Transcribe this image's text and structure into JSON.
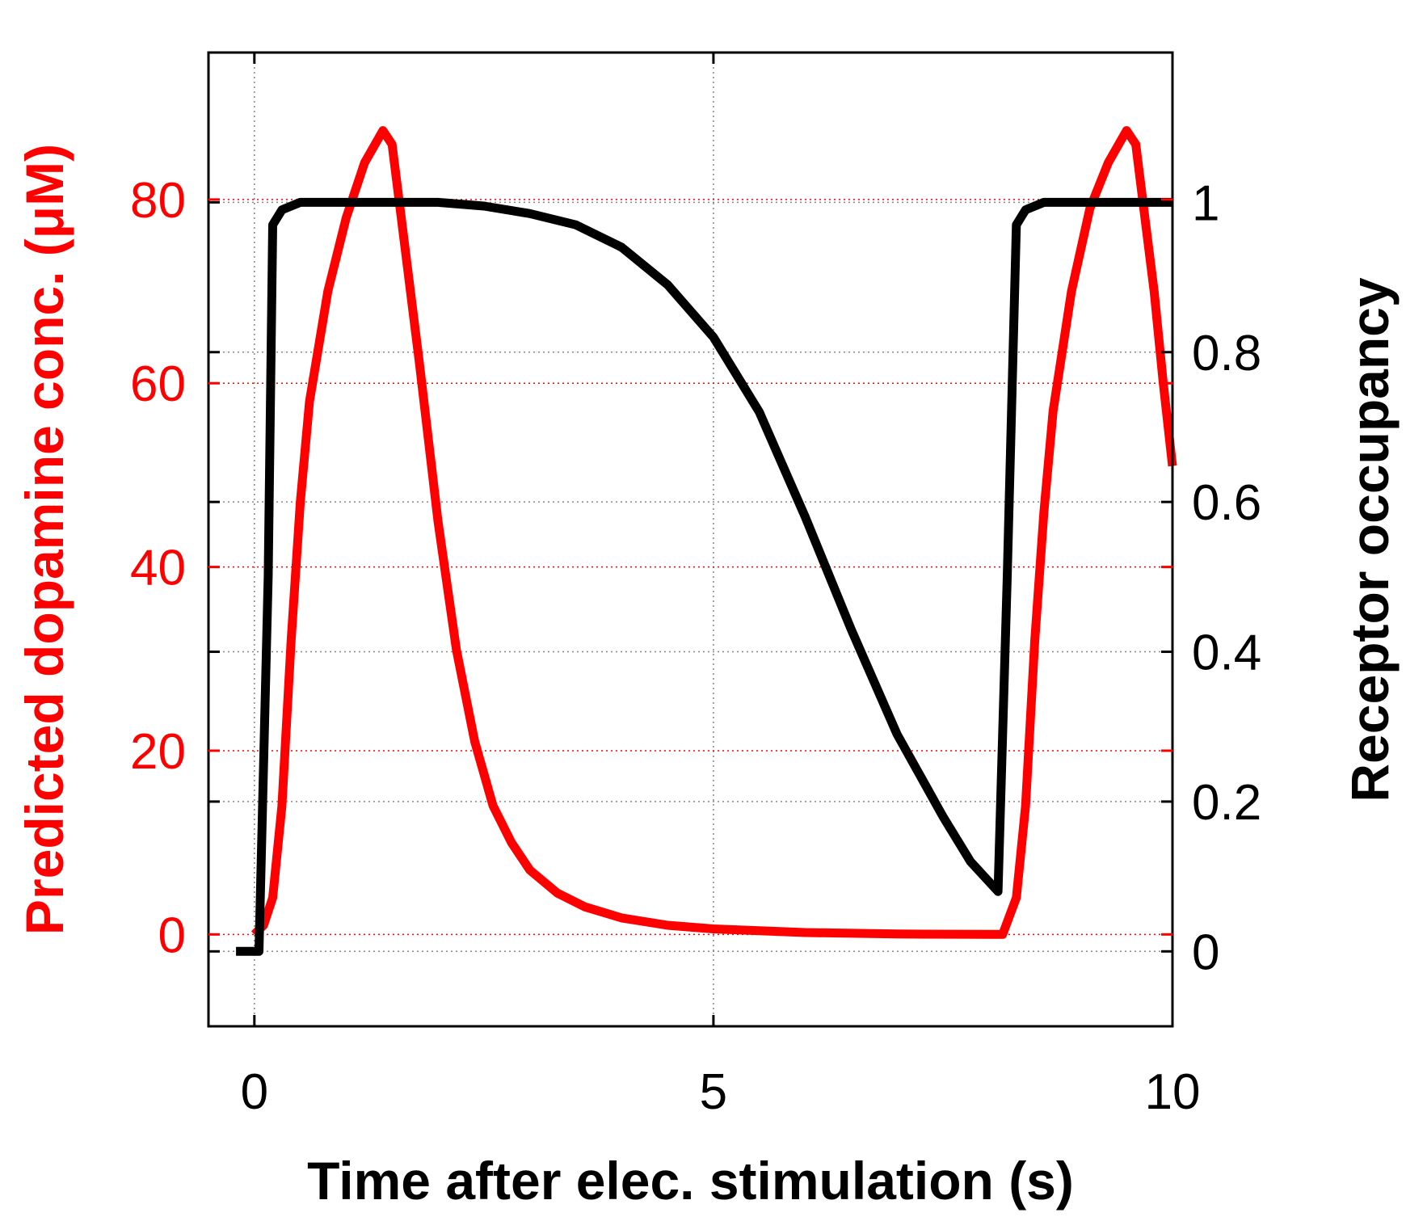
{
  "chart_data": {
    "type": "line",
    "title": "",
    "xlabel": "Time after elec. stimulation (s)",
    "ylabel_left": "Predicted dopamine conc. (μM)",
    "ylabel_right": "Receptor occupancy",
    "xlim": [
      -0.5,
      10
    ],
    "ylim_left": [
      -10,
      96
    ],
    "ylim_right": [
      -0.1,
      1.2
    ],
    "x_ticks": [
      "0",
      "5",
      "10"
    ],
    "x_tick_values": [
      0,
      5,
      10
    ],
    "y_left_ticks": [
      "0",
      "20",
      "40",
      "60",
      "80"
    ],
    "y_left_tick_values": [
      0,
      20,
      40,
      60,
      80
    ],
    "y_right_ticks": [
      "0",
      "0.2",
      "0.4",
      "0.6",
      "0.8",
      "1"
    ],
    "y_right_tick_values": [
      0,
      0.2,
      0.4,
      0.6,
      0.8,
      1
    ],
    "grid": true,
    "colors": {
      "left_axis": "#ff0000",
      "right_axis": "#000000",
      "grid_left": "#ff0000",
      "grid_right": "#888888"
    },
    "series": [
      {
        "axis": "left",
        "color": "#ff0000",
        "points": [
          [
            0,
            0
          ],
          [
            0.1,
            1
          ],
          [
            0.2,
            4
          ],
          [
            0.3,
            14
          ],
          [
            0.4,
            32
          ],
          [
            0.5,
            47
          ],
          [
            0.6,
            58
          ],
          [
            0.8,
            70
          ],
          [
            1.0,
            78
          ],
          [
            1.2,
            84
          ],
          [
            1.4,
            87.5
          ],
          [
            1.5,
            86
          ],
          [
            1.6,
            78
          ],
          [
            1.8,
            62
          ],
          [
            2.0,
            45
          ],
          [
            2.2,
            31
          ],
          [
            2.4,
            21
          ],
          [
            2.6,
            14
          ],
          [
            2.8,
            10
          ],
          [
            3.0,
            7
          ],
          [
            3.3,
            4.5
          ],
          [
            3.6,
            3
          ],
          [
            4.0,
            1.8
          ],
          [
            4.5,
            1
          ],
          [
            5.0,
            0.6
          ],
          [
            6.0,
            0.2
          ],
          [
            7.0,
            0.05
          ],
          [
            8.0,
            0
          ],
          [
            8.15,
            0
          ],
          [
            8.3,
            4
          ],
          [
            8.4,
            14
          ],
          [
            8.5,
            32
          ],
          [
            8.6,
            46
          ],
          [
            8.7,
            57
          ],
          [
            8.9,
            70
          ],
          [
            9.1,
            79
          ],
          [
            9.3,
            84
          ],
          [
            9.5,
            87.5
          ],
          [
            9.6,
            86
          ],
          [
            9.7,
            78
          ],
          [
            9.8,
            70
          ],
          [
            9.9,
            60
          ],
          [
            10,
            51
          ]
        ]
      },
      {
        "axis": "right",
        "color": "#000000",
        "points": [
          [
            -0.2,
            0
          ],
          [
            0.05,
            0
          ],
          [
            0.15,
            0.5
          ],
          [
            0.2,
            0.97
          ],
          [
            0.3,
            0.99
          ],
          [
            0.5,
            1.0
          ],
          [
            1.0,
            1.0
          ],
          [
            2.0,
            1.0
          ],
          [
            2.5,
            0.995
          ],
          [
            3.0,
            0.985
          ],
          [
            3.5,
            0.97
          ],
          [
            4.0,
            0.94
          ],
          [
            4.5,
            0.89
          ],
          [
            5.0,
            0.82
          ],
          [
            5.5,
            0.72
          ],
          [
            6.0,
            0.58
          ],
          [
            6.5,
            0.43
          ],
          [
            7.0,
            0.29
          ],
          [
            7.5,
            0.18
          ],
          [
            7.8,
            0.12
          ],
          [
            8.1,
            0.08
          ],
          [
            8.2,
            0.5
          ],
          [
            8.3,
            0.97
          ],
          [
            8.4,
            0.99
          ],
          [
            8.6,
            1.0
          ],
          [
            9.0,
            1.0
          ],
          [
            10,
            1.0
          ]
        ]
      }
    ]
  }
}
